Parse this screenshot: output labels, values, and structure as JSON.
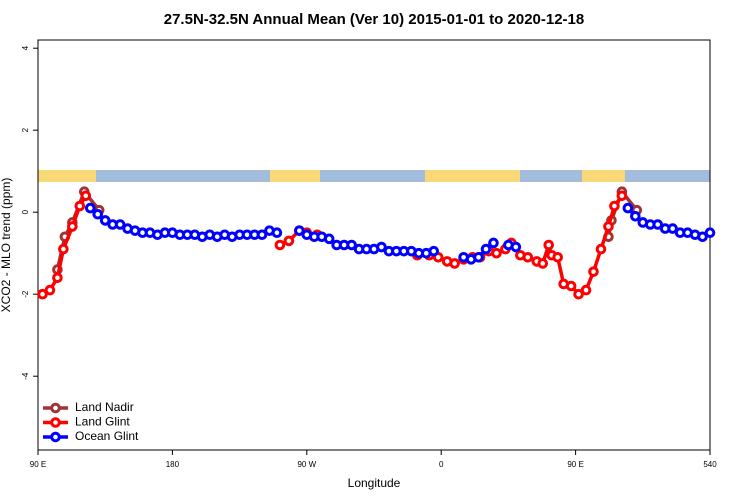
{
  "chart_data": {
    "type": "line",
    "title": "27.5N-32.5N Annual Mean (Ver 10)   2015-01-01 to 2020-12-18",
    "x_label": "Longitude",
    "y_label": "XCO2 - MLO trend (ppm)",
    "xlim": [
      90,
      540
    ],
    "xticks": [
      {
        "value": 90,
        "label": "90 E"
      },
      180,
      {
        "value": 270,
        "label": "90 W"
      },
      {
        "value": 360,
        "label": "0"
      },
      {
        "value": 450,
        "label": "90 E"
      },
      540
    ],
    "ylim": [
      -5.8,
      4.2
    ],
    "yticks": [
      -4,
      -2,
      0,
      2,
      4
    ],
    "legend": "bottom-left",
    "series": [
      {
        "name": "Land Nadir",
        "color": "#a03333",
        "x": [
          103,
          108,
          113,
          121,
          131,
          300,
          472,
          474,
          481,
          491
        ],
        "values": [
          -1.4,
          -0.6,
          -0.25,
          0.5,
          0.05,
          null,
          -0.6,
          -0.2,
          0.5,
          0.05
        ]
      },
      {
        "name": "Land Glint",
        "color": "#ff0000",
        "x": [
          93,
          98,
          103,
          107,
          113,
          118,
          122,
          125,
          252,
          258,
          265,
          270,
          277,
          280,
          344,
          352,
          358,
          364,
          369,
          375,
          381,
          386,
          392,
          397,
          403,
          407,
          413,
          418,
          424,
          428,
          432,
          434,
          438,
          442,
          447,
          452,
          457,
          462,
          467,
          472,
          476,
          481
        ],
        "values": [
          -2.0,
          -1.9,
          -1.6,
          -0.9,
          -0.35,
          0.15,
          0.4,
          null,
          -0.8,
          -0.7,
          -0.45,
          -0.5,
          -0.55,
          null,
          -1.05,
          -1.05,
          -1.1,
          -1.2,
          -1.25,
          -1.15,
          -1.1,
          -1.1,
          -0.95,
          -1.0,
          -0.9,
          -0.75,
          -1.05,
          -1.1,
          -1.2,
          -1.25,
          -0.8,
          -1.05,
          -1.1,
          -1.75,
          -1.8,
          -2.0,
          -1.9,
          -1.45,
          -0.9,
          -0.35,
          0.15,
          0.4
        ]
      },
      {
        "name": "Ocean Glint",
        "color": "#0000ff",
        "x": [
          125,
          130,
          135,
          140,
          145,
          150,
          155,
          160,
          165,
          170,
          175,
          180,
          185,
          190,
          195,
          200,
          205,
          210,
          215,
          220,
          225,
          230,
          235,
          240,
          245,
          250,
          255,
          265,
          270,
          275,
          280,
          285,
          290,
          295,
          300,
          305,
          310,
          315,
          320,
          325,
          330,
          335,
          340,
          345,
          350,
          355,
          360,
          375,
          380,
          385,
          390,
          395,
          400,
          405,
          410,
          415,
          485,
          490,
          495,
          500,
          505,
          510,
          515,
          520,
          525,
          530,
          535,
          540
        ],
        "values": [
          0.1,
          -0.05,
          -0.2,
          -0.3,
          -0.3,
          -0.4,
          -0.45,
          -0.5,
          -0.5,
          -0.55,
          -0.5,
          -0.5,
          -0.55,
          -0.55,
          -0.55,
          -0.6,
          -0.55,
          -0.6,
          -0.55,
          -0.6,
          -0.55,
          -0.55,
          -0.55,
          -0.55,
          -0.45,
          -0.5,
          null,
          -0.45,
          -0.55,
          -0.6,
          -0.6,
          -0.65,
          -0.8,
          -0.8,
          -0.8,
          -0.9,
          -0.9,
          -0.9,
          -0.85,
          -0.95,
          -0.95,
          -0.95,
          -0.95,
          -1.0,
          -1.0,
          -0.95,
          null,
          -1.1,
          -1.15,
          -1.1,
          -0.9,
          -0.75,
          null,
          -0.8,
          -0.85,
          null,
          0.1,
          -0.1,
          -0.25,
          -0.3,
          -0.3,
          -0.4,
          -0.4,
          -0.5,
          -0.5,
          -0.55,
          -0.6,
          -0.5
        ]
      }
    ]
  }
}
